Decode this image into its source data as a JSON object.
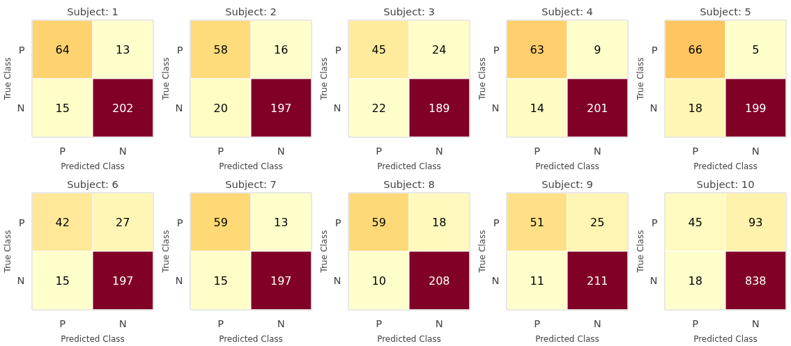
{
  "chart_data": [
    {
      "type": "heatmap",
      "title": "Subject: 1",
      "xlabel": "Predicted Class",
      "ylabel": "True Class",
      "categories": [
        "P",
        "N"
      ],
      "y_categories": [
        "P",
        "N"
      ],
      "cells": [
        [
          64,
          13
        ],
        [
          15,
          202
        ]
      ],
      "data_labels": true
    },
    {
      "type": "heatmap",
      "title": "Subject: 2",
      "xlabel": "Predicted Class",
      "ylabel": "True Class",
      "categories": [
        "P",
        "N"
      ],
      "y_categories": [
        "P",
        "N"
      ],
      "cells": [
        [
          58,
          16
        ],
        [
          20,
          197
        ]
      ],
      "data_labels": true
    },
    {
      "type": "heatmap",
      "title": "Subject: 3",
      "xlabel": "Predicted Class",
      "ylabel": "True Class",
      "categories": [
        "P",
        "N"
      ],
      "y_categories": [
        "P",
        "N"
      ],
      "cells": [
        [
          45,
          24
        ],
        [
          22,
          189
        ]
      ],
      "data_labels": true
    },
    {
      "type": "heatmap",
      "title": "Subject: 4",
      "xlabel": "Predicted Class",
      "ylabel": "True Class",
      "categories": [
        "P",
        "N"
      ],
      "y_categories": [
        "P",
        "N"
      ],
      "cells": [
        [
          63,
          9
        ],
        [
          14,
          201
        ]
      ],
      "data_labels": true
    },
    {
      "type": "heatmap",
      "title": "Subject: 5",
      "xlabel": "Predicted Class",
      "ylabel": "True Class",
      "categories": [
        "P",
        "N"
      ],
      "y_categories": [
        "P",
        "N"
      ],
      "cells": [
        [
          66,
          5
        ],
        [
          18,
          199
        ]
      ],
      "data_labels": true
    },
    {
      "type": "heatmap",
      "title": "Subject: 6",
      "xlabel": "Predicted Class",
      "ylabel": "True Class",
      "categories": [
        "P",
        "N"
      ],
      "y_categories": [
        "P",
        "N"
      ],
      "cells": [
        [
          42,
          27
        ],
        [
          15,
          197
        ]
      ],
      "data_labels": true
    },
    {
      "type": "heatmap",
      "title": "Subject: 7",
      "xlabel": "Predicted Class",
      "ylabel": "True Class",
      "categories": [
        "P",
        "N"
      ],
      "y_categories": [
        "P",
        "N"
      ],
      "cells": [
        [
          59,
          13
        ],
        [
          15,
          197
        ]
      ],
      "data_labels": true
    },
    {
      "type": "heatmap",
      "title": "Subject: 8",
      "xlabel": "Predicted Class",
      "ylabel": "True Class",
      "categories": [
        "P",
        "N"
      ],
      "y_categories": [
        "P",
        "N"
      ],
      "cells": [
        [
          59,
          18
        ],
        [
          10,
          208
        ]
      ],
      "data_labels": true
    },
    {
      "type": "heatmap",
      "title": "Subject: 9",
      "xlabel": "Predicted Class",
      "ylabel": "True Class",
      "categories": [
        "P",
        "N"
      ],
      "y_categories": [
        "P",
        "N"
      ],
      "cells": [
        [
          51,
          25
        ],
        [
          11,
          211
        ]
      ],
      "data_labels": true
    },
    {
      "type": "heatmap",
      "title": "Subject: 10",
      "xlabel": "Predicted Class",
      "ylabel": "True Class",
      "categories": [
        "P",
        "N"
      ],
      "y_categories": [
        "P",
        "N"
      ],
      "cells": [
        [
          45,
          93
        ],
        [
          18,
          838
        ]
      ],
      "data_labels": true
    }
  ]
}
